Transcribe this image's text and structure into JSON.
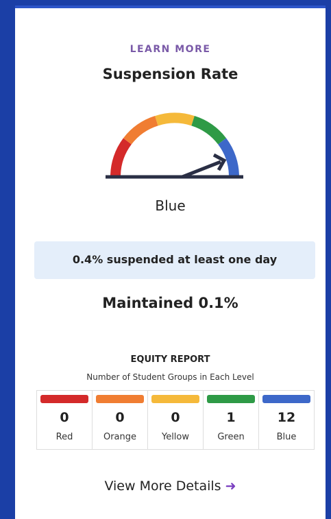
{
  "card": {
    "eyebrow": "LEARN MORE",
    "title": "Suspension Rate",
    "level": "Blue",
    "status": "0.4% suspended at least one day",
    "change": "Maintained 0.1%",
    "equity": {
      "title": "EQUITY REPORT",
      "subtitle": "Number of Student Groups in Each Level",
      "groups": [
        {
          "label": "Red",
          "count": 0,
          "color": "#d42a2a"
        },
        {
          "label": "Orange",
          "count": 0,
          "color": "#f07d32"
        },
        {
          "label": "Yellow",
          "count": 0,
          "color": "#f5b93a"
        },
        {
          "label": "Green",
          "count": 1,
          "color": "#2e9a46"
        },
        {
          "label": "Blue",
          "count": 12,
          "color": "#3d68c9"
        }
      ]
    },
    "link": "View More Details"
  }
}
